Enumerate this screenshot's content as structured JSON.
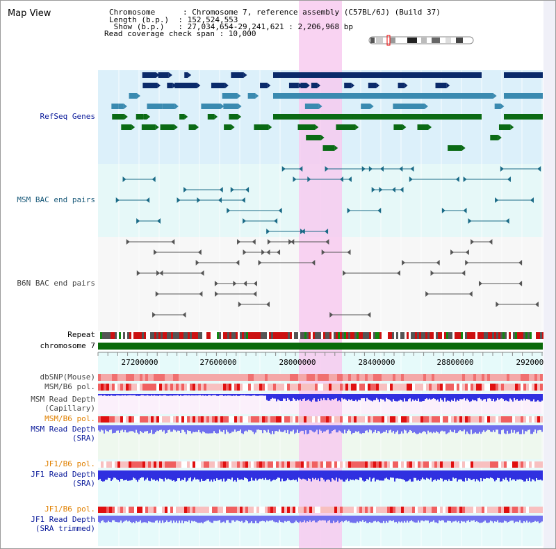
{
  "title": "Map View",
  "info": {
    "chromosome": "Chromosome      : Chromosome 7, reference assembly (C57BL/6J) (Build 37)",
    "length": "Length (b.p.)  : 152,524,553",
    "show": " Show (b.p.)   : 27,034,654-29,241,621 : 2,206,968 bp",
    "coverage": "Read coverage check span : 10,000"
  },
  "tracks": {
    "refseq": "RefSeq Genes",
    "msm_bac": "MSM BAC end pairs",
    "b6n_bac": "B6N BAC end pairs",
    "repeat": "Repeat",
    "chromosome": "chromosome 7",
    "dbsnp": "dbSNP(Mouse)",
    "msm_b6_pol": "MSM/B6 pol.",
    "msm_depth_cap_1": "MSM Read Depth",
    "msm_depth_cap_2": "(Capillary)",
    "msm_b6_pol2": "MSM/B6 pol.",
    "msm_depth_sra_1": "MSM Read Depth",
    "msm_depth_sra_2": "(SRA)",
    "jf1_b6_pol": "JF1/B6 pol.",
    "jf1_depth_sra_1": "JF1 Read Depth",
    "jf1_depth_sra_2": "(SRA)",
    "jf1_b6_pol2": "JF1/B6 pol.",
    "jf1_depth_trim_1": "JF1 Read Depth",
    "jf1_depth_trim_2": "(SRA trimmed)"
  },
  "axis": {
    "ticks": [
      "27200000",
      "27600000",
      "28000000",
      "28400000",
      "28800000",
      "29200000"
    ]
  },
  "colors": {
    "highlight": "#f7c8ef",
    "refseq_bg": "#dcf0fa",
    "refseq_dark": "#0a2a6a",
    "refseq_mid": "#3a8ab0",
    "refseq_green": "#0a6a14",
    "bac_msm": "#1a6a86",
    "bac_b6n": "#555555",
    "chromosome_bar": "#0a6a0a",
    "label_blue": "#0a1a9a",
    "label_orange": "#e08000",
    "depth_blue": "#3030e0",
    "depth_light": "#7070ee"
  }
}
